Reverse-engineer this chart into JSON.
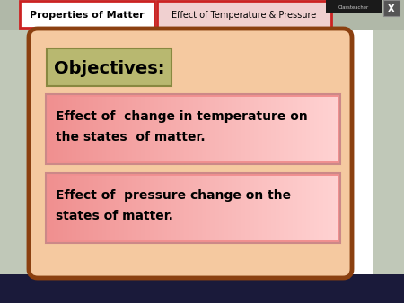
{
  "tab1_text": "Properties of Matter",
  "tab2_text": "Effect of Temperature & Pressure",
  "objectives_label": "Objectives:",
  "bullet1_line1": "Effect of  change in temperature on",
  "bullet1_line2": "the states  of matter.",
  "bullet2_line1": "Effect of  pressure change on the",
  "bullet2_line2": "states of matter.",
  "main_panel_bg": "#f5c9a0",
  "main_panel_border": "#8B4010",
  "objectives_box_bg": "#b8b870",
  "objectives_box_border": "#888840",
  "tab1_bg": "#ffffff",
  "tab1_border": "#cc3333",
  "tab2_bg": "#f5e0e0",
  "tab2_border": "#cc3333",
  "side_bg": "#c8d0c0",
  "top_bar_bg": "#b8c0b0",
  "white_center_bg": "#ffffff",
  "bottom_bar_bg": "#1a1a3a",
  "text_color": "#000000",
  "classtchr_bg": "#1a1a1a",
  "xbtn_bg": "#555555"
}
